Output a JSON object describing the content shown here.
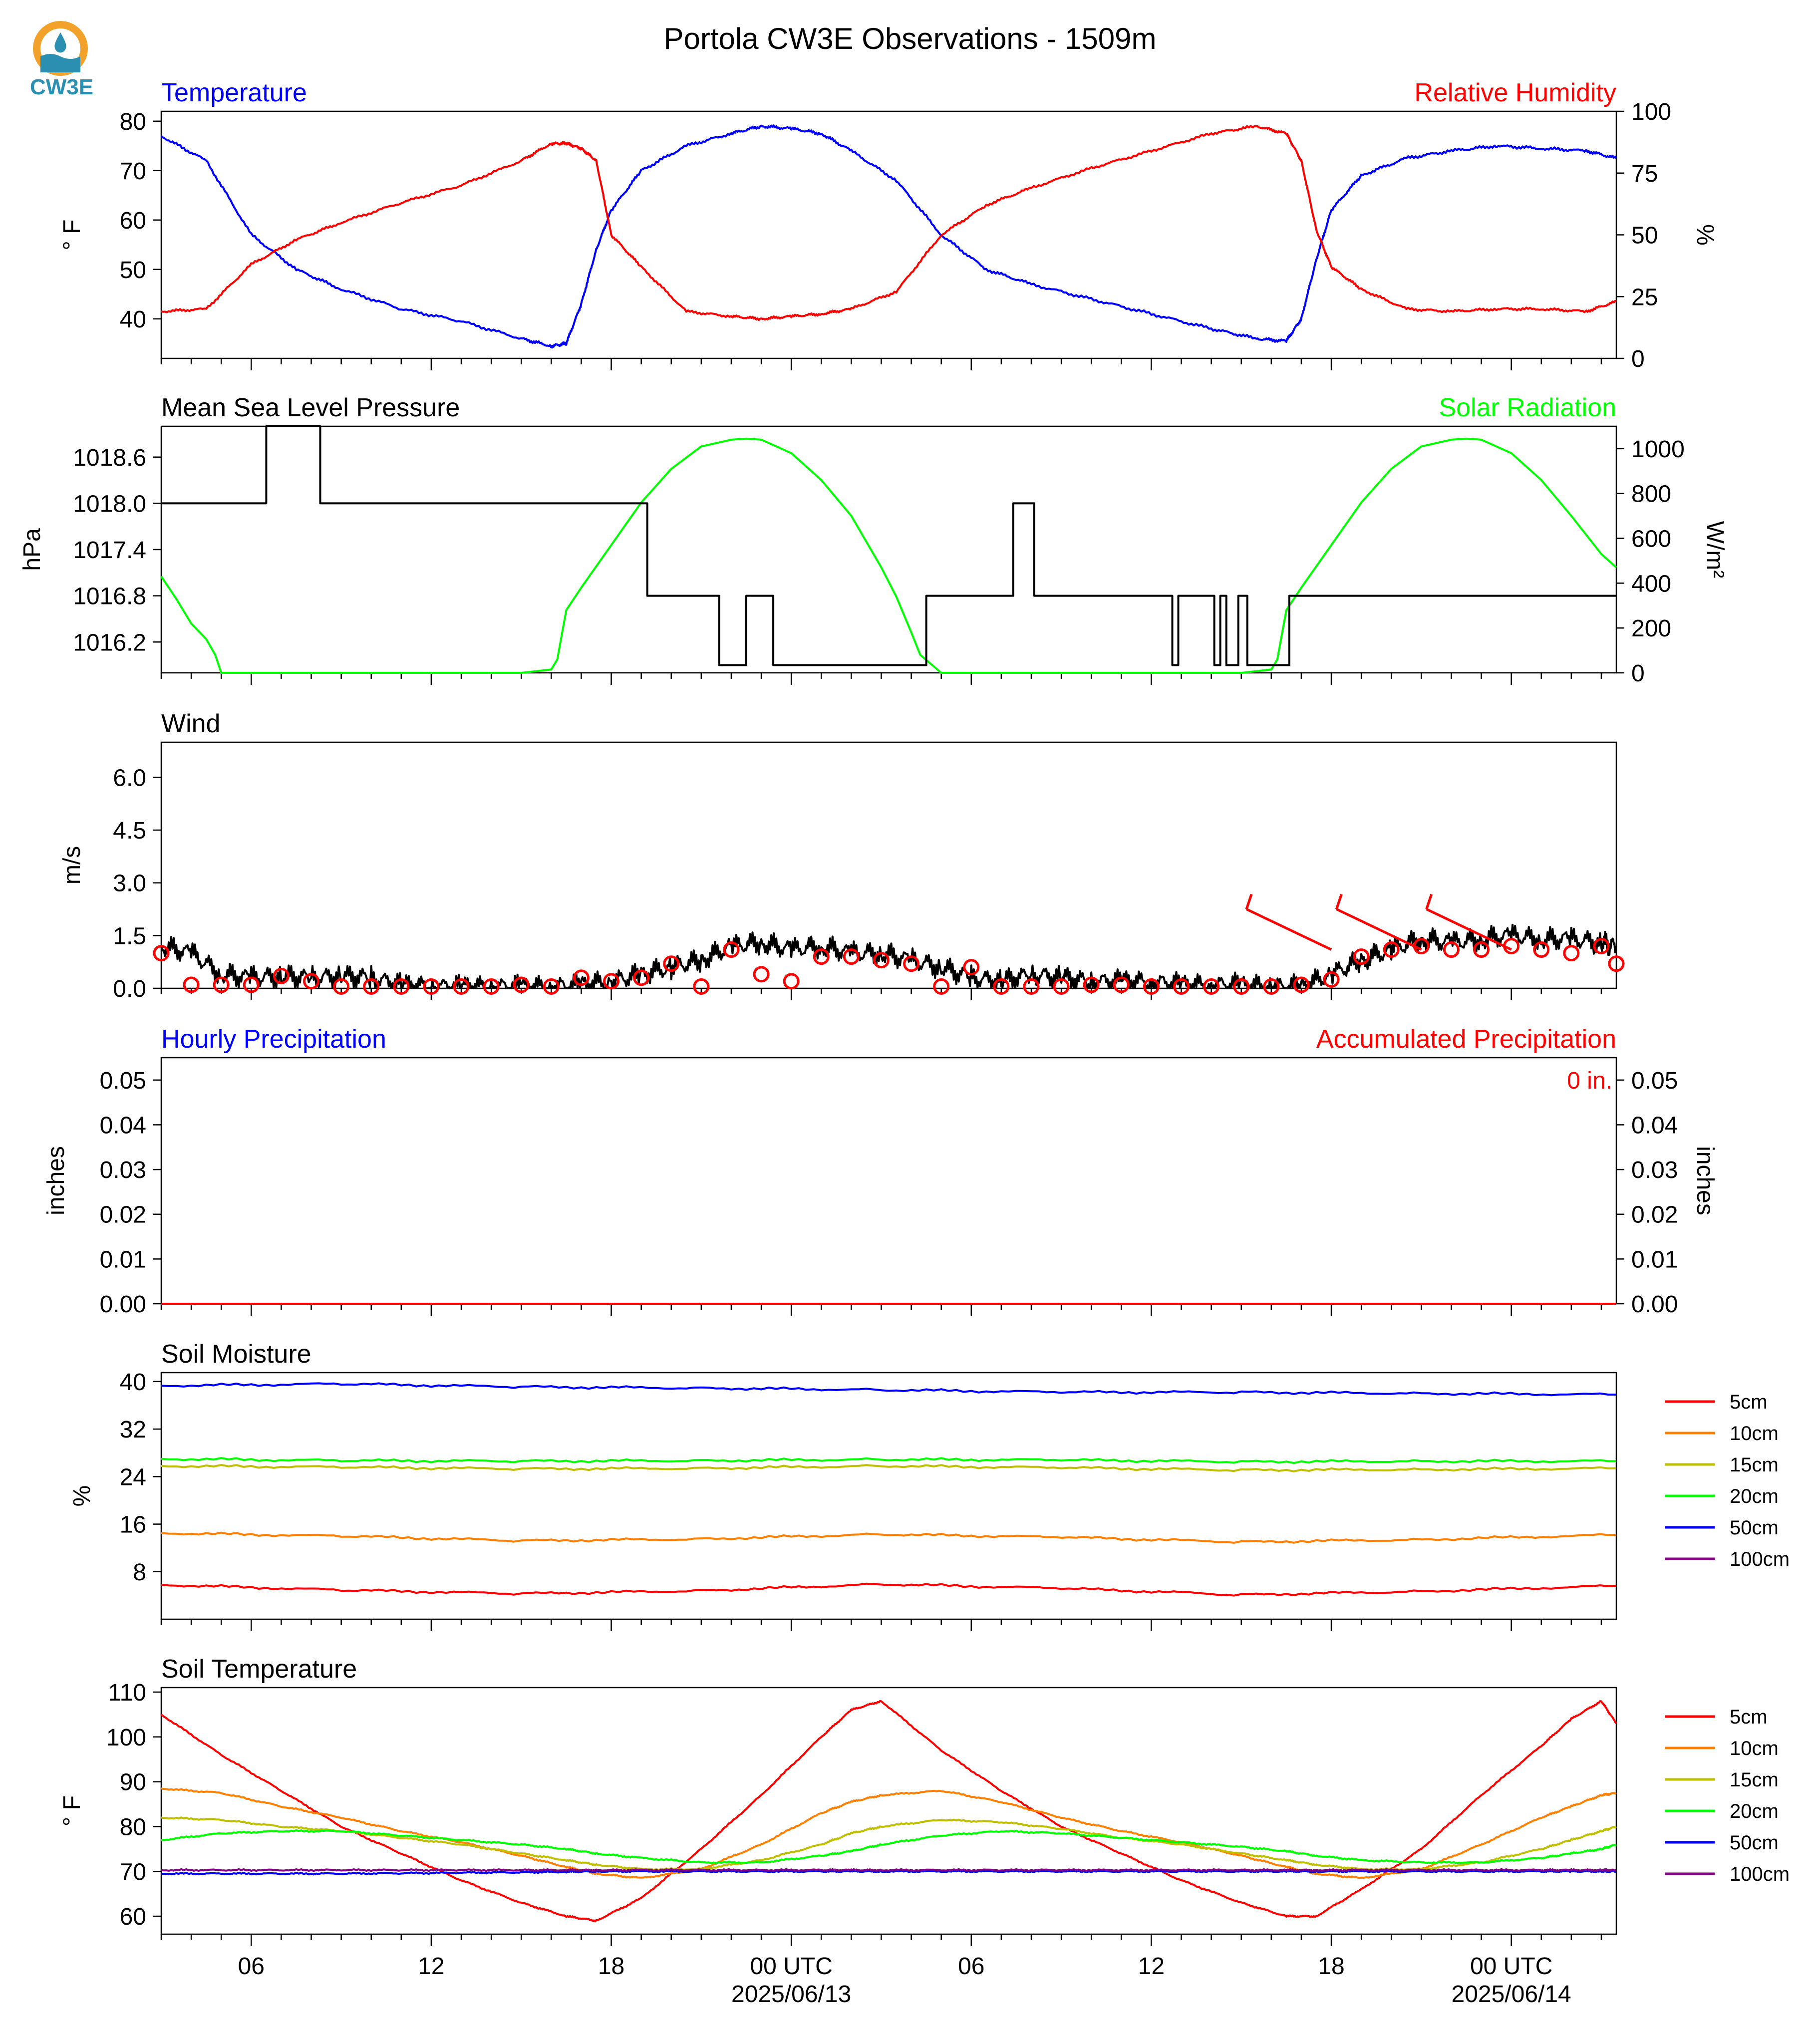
{
  "title": "Portola CW3E Observations - 1509m",
  "logo": {
    "text": "CW3E",
    "colors": {
      "sun": "#f2a22a",
      "water": "#2a8fb0"
    }
  },
  "x_axis": {
    "ticks": [
      "06",
      "12",
      "18",
      "00 UTC",
      "06",
      "12",
      "18",
      "00 UTC"
    ],
    "dates": [
      "2025/06/13",
      "2025/06/14"
    ]
  },
  "chart_data": [
    {
      "type": "line",
      "panel": "temperature_rh",
      "title_left": "Temperature",
      "title_right": "Relative Humidity",
      "ylabel_left": "° F",
      "ylabel_right": "%",
      "ylim_left": [
        32,
        82
      ],
      "yticks_left": [
        40,
        50,
        60,
        70,
        80
      ],
      "ylim_right": [
        0,
        100
      ],
      "yticks_right": [
        0,
        25,
        50,
        75,
        100
      ],
      "x_hours": [
        0,
        1.5,
        3,
        4.5,
        6,
        8,
        10,
        12,
        13,
        13.5,
        14,
        14.5,
        15,
        16,
        17.5,
        19,
        20,
        21,
        22,
        23,
        24.5,
        26,
        27.5,
        29,
        31,
        33,
        35,
        36.5,
        37.5,
        38,
        38.5,
        39,
        40,
        41.5,
        43,
        44.5,
        46,
        47.5,
        48.5
      ],
      "series": [
        {
          "name": "Temperature",
          "axis": "left",
          "color": "#0000ff",
          "values": [
            77,
            72,
            57,
            50,
            46,
            42,
            39.5,
            36,
            34.5,
            35,
            43,
            54,
            62,
            70,
            75,
            77.5,
            79,
            78.5,
            77.5,
            74,
            68,
            57,
            50,
            47,
            44,
            41,
            38,
            36,
            35.5,
            40,
            52,
            62,
            69,
            72.5,
            74,
            75,
            74.5,
            74,
            72.5
          ]
        },
        {
          "name": "Relative Humidity",
          "axis": "right",
          "color": "#ff0000",
          "values": [
            19,
            20,
            38,
            48,
            55,
            63,
            70,
            80,
            87,
            87,
            85,
            80,
            50,
            37,
            19,
            17,
            16,
            17,
            18,
            20,
            27,
            50,
            62,
            69,
            77,
            84,
            91,
            94,
            91,
            80,
            52,
            37,
            28,
            20,
            19,
            20,
            20,
            19,
            23
          ]
        }
      ]
    },
    {
      "type": "line",
      "panel": "pressure_solar",
      "title_left": "Mean Sea Level Pressure",
      "title_right": "Solar Radiation",
      "ylabel_left": "hPa",
      "ylabel_right": "W/m²",
      "ylim_left": [
        1015.8,
        1019.0
      ],
      "yticks_left": [
        1016.2,
        1016.8,
        1017.4,
        1018.0,
        1018.6
      ],
      "ylim_right": [
        0,
        1100
      ],
      "yticks_right": [
        0,
        200,
        400,
        600,
        800,
        1000
      ],
      "series": [
        {
          "name": "Mean Sea Level Pressure",
          "axis": "left",
          "color": "#000000",
          "x_hours": [
            0,
            3.5,
            3.5,
            5.3,
            5.3,
            16.2,
            16.2,
            18.6,
            18.6,
            19.5,
            19.5,
            20.4,
            20.4,
            25.5,
            25.5,
            28.4,
            28.4,
            29.1,
            29.1,
            33.7,
            33.7,
            33.9,
            33.9,
            35.1,
            35.1,
            35.3,
            35.3,
            35.5,
            35.5,
            35.9,
            35.9,
            36.2,
            36.2,
            37.6,
            37.6,
            48.5
          ],
          "values": [
            1018.0,
            1018.0,
            1019.0,
            1019.0,
            1018.0,
            1018.0,
            1016.8,
            1016.8,
            1015.9,
            1015.9,
            1016.8,
            1016.8,
            1015.9,
            1015.9,
            1016.8,
            1016.8,
            1018.0,
            1018.0,
            1016.8,
            1016.8,
            1015.9,
            1015.9,
            1016.8,
            1016.8,
            1015.9,
            1015.9,
            1016.8,
            1016.8,
            1015.9,
            1015.9,
            1016.8,
            1016.8,
            1015.9,
            1015.9,
            1016.8,
            1016.8
          ]
        },
        {
          "name": "Solar Radiation",
          "axis": "right",
          "color": "#00ff00",
          "x_hours": [
            0,
            0.5,
            1,
            1.5,
            1.8,
            2,
            12,
            13,
            13.2,
            13.5,
            14,
            15,
            16,
            17,
            18,
            19,
            19.5,
            20,
            21,
            22,
            23,
            24,
            24.5,
            25,
            25.3,
            26,
            36,
            37,
            37.2,
            37.5,
            38,
            39,
            40,
            41,
            42,
            43,
            43.5,
            44,
            45,
            46,
            47,
            48,
            48.5
          ],
          "values": [
            430,
            330,
            220,
            150,
            80,
            0,
            0,
            15,
            60,
            280,
            380,
            570,
            760,
            910,
            1010,
            1040,
            1045,
            1040,
            980,
            860,
            700,
            470,
            340,
            180,
            80,
            0,
            0,
            15,
            60,
            280,
            380,
            570,
            760,
            910,
            1010,
            1040,
            1045,
            1040,
            980,
            860,
            700,
            530,
            470
          ]
        }
      ]
    },
    {
      "type": "line",
      "panel": "wind",
      "title_left": "Wind",
      "ylabel_left": "m/s",
      "ylim_left": [
        0,
        7
      ],
      "yticks_left": [
        0.0,
        1.5,
        3.0,
        4.5,
        6.0
      ],
      "x_hours": [
        0,
        1,
        2,
        3,
        4,
        5,
        6,
        7,
        8,
        9,
        10,
        11,
        12,
        13,
        14,
        15,
        16,
        17,
        18,
        19,
        20,
        21,
        22,
        23,
        24,
        25,
        26,
        27,
        28,
        29,
        30,
        31,
        32,
        33,
        34,
        35,
        36,
        37,
        38,
        39,
        40,
        41,
        42,
        43,
        44,
        45,
        46,
        47,
        48,
        48.5
      ],
      "series": [
        {
          "name": "Wind Speed",
          "color": "#000000",
          "values": [
            1.2,
            1.0,
            0.4,
            0.3,
            0.35,
            0.3,
            0.35,
            0.3,
            0.1,
            0.05,
            0.05,
            0.05,
            0.05,
            0.05,
            0.1,
            0.2,
            0.4,
            0.6,
            0.8,
            1.2,
            1.3,
            1.1,
            1.2,
            1.0,
            1.0,
            0.8,
            0.6,
            0.3,
            0.2,
            0.4,
            0.3,
            0.2,
            0.2,
            0.2,
            0.1,
            0.1,
            0.1,
            0.05,
            0.05,
            0.4,
            0.8,
            1.1,
            1.4,
            1.3,
            1.4,
            1.5,
            1.4,
            1.4,
            1.3,
            1.2
          ]
        },
        {
          "name": "Wind Observations",
          "color": "#ff0000",
          "marker": "circle",
          "values": [
            1.0,
            0.1,
            0.1,
            0.1,
            0.35,
            0.2,
            0.05,
            0.05,
            0.05,
            0.05,
            0.05,
            0.05,
            0.1,
            0.05,
            0.3,
            0.2,
            0.3,
            0.7,
            0.05,
            1.1,
            0.4,
            0.2,
            0.9,
            0.9,
            0.8,
            0.7,
            0.05,
            0.6,
            0.05,
            0.05,
            0.05,
            0.1,
            0.1,
            0.05,
            0.05,
            0.05,
            0.05,
            0.05,
            0.1,
            0.25,
            0.9,
            1.1,
            1.2,
            1.1,
            1.1,
            1.2,
            1.1,
            1.0,
            1.2,
            0.7
          ]
        }
      ],
      "barbs_hours": [
        39,
        42,
        45
      ]
    },
    {
      "type": "line",
      "panel": "precipitation",
      "title_left": "Hourly Precipitation",
      "title_right": "Accumulated Precipitation",
      "ylabel_left": "inches",
      "ylabel_right": "inches",
      "ylim_left": [
        0,
        0.055
      ],
      "yticks_left": [
        "0.00",
        "0.01",
        "0.02",
        "0.03",
        "0.04",
        "0.05"
      ],
      "yticks_right": [
        "0.00",
        "0.01",
        "0.02",
        "0.03",
        "0.04",
        "0.05"
      ],
      "annotation": "0 in.",
      "series": [
        {
          "name": "Hourly Precipitation",
          "color": "#0000ff",
          "x_hours": [
            0,
            48.5
          ],
          "values": [
            0,
            0
          ]
        },
        {
          "name": "Accumulated Precipitation",
          "color": "#ff0000",
          "x_hours": [
            0,
            48.5
          ],
          "values": [
            0,
            0
          ]
        }
      ]
    },
    {
      "type": "line",
      "panel": "soil_moisture",
      "title_left": "Soil Moisture",
      "ylabel_left": "%",
      "ylim_left": [
        0,
        41.5
      ],
      "yticks_left": [
        8,
        16,
        24,
        32,
        40
      ],
      "x_hours": [
        0,
        6,
        12,
        18,
        24,
        30,
        36,
        42,
        48.5
      ],
      "series": [
        {
          "name": "5cm",
          "color": "#ff0000",
          "values": [
            5.8,
            4.9,
            4.3,
            4.8,
            5.9,
            5.2,
            4.1,
            4.7,
            5.6
          ]
        },
        {
          "name": "10cm",
          "color": "#ff8000",
          "values": [
            14.5,
            14.0,
            13.2,
            13.5,
            14.3,
            13.8,
            13.0,
            13.4,
            14.2
          ]
        },
        {
          "name": "15cm",
          "color": "#bfbf00",
          "values": [
            25.8,
            25.6,
            25.3,
            25.4,
            25.8,
            25.5,
            25.1,
            25.2,
            25.4
          ]
        },
        {
          "name": "20cm",
          "color": "#00ff00",
          "values": [
            27.0,
            26.7,
            26.6,
            26.7,
            26.9,
            26.8,
            26.5,
            26.6,
            26.6
          ]
        },
        {
          "name": "50cm",
          "color": "#0000ff",
          "values": [
            39.3,
            39.6,
            39.1,
            38.9,
            38.6,
            38.2,
            38.2,
            38.0,
            37.8
          ]
        },
        {
          "name": "100cm",
          "color": "#800080",
          "values": []
        }
      ],
      "legend": [
        "5cm",
        "10cm",
        "15cm",
        "20cm",
        "50cm",
        "100cm"
      ]
    },
    {
      "type": "line",
      "panel": "soil_temperature",
      "title_left": "Soil Temperature",
      "ylabel_left": "° F",
      "ylim_left": [
        56,
        111
      ],
      "yticks_left": [
        60,
        70,
        80,
        90,
        100,
        110
      ],
      "x_hours": [
        0,
        2,
        4,
        6,
        8,
        10,
        12,
        13.5,
        14.5,
        16,
        18,
        20,
        22,
        23,
        24,
        26,
        28,
        30,
        32,
        34,
        36,
        37.5,
        38.5,
        40,
        42,
        44,
        46,
        47,
        48,
        48.5
      ],
      "series": [
        {
          "name": "5cm",
          "color": "#ff0000",
          "values": [
            105,
            96,
            88,
            80,
            74,
            68,
            63,
            60,
            59,
            64,
            75,
            87,
            100,
            106,
            108,
            97,
            88,
            80,
            74,
            68,
            63,
            60,
            60,
            66,
            75,
            87,
            98,
            104,
            108,
            103
          ]
        },
        {
          "name": "10cm",
          "color": "#ff8000",
          "values": [
            88.5,
            87.5,
            84.5,
            82,
            79,
            76.5,
            73.5,
            71,
            69.5,
            68.5,
            70.5,
            76,
            83,
            85.5,
            87,
            88,
            85.5,
            82,
            79,
            76.5,
            73.5,
            71,
            69.5,
            68.5,
            70.5,
            76,
            82,
            84.5,
            87,
            87.5
          ]
        },
        {
          "name": "15cm",
          "color": "#bfbf00",
          "values": [
            82,
            81.5,
            80,
            79,
            77.5,
            76,
            74,
            72.5,
            71.5,
            70.5,
            70.5,
            72.5,
            76,
            78.5,
            80,
            81.5,
            81,
            79.5,
            77.5,
            76,
            74,
            72.5,
            71.5,
            70.5,
            70.5,
            72,
            75,
            77,
            79,
            80
          ]
        },
        {
          "name": "20cm",
          "color": "#00ff00",
          "values": [
            77,
            78.5,
            79,
            79,
            78,
            77,
            76,
            75,
            74,
            73,
            72,
            72,
            73.5,
            74.5,
            76,
            78,
            79,
            78.5,
            77.5,
            76.5,
            75.5,
            74.5,
            73.5,
            72.5,
            72,
            72,
            73,
            74,
            75,
            76
          ]
        },
        {
          "name": "50cm",
          "color": "#0000ff",
          "values": [
            69.5,
            69.5,
            69.5,
            69.5,
            69.6,
            69.7,
            69.8,
            69.9,
            70,
            70,
            70,
            70,
            70,
            70,
            70,
            70,
            70,
            70,
            70,
            70,
            70,
            70,
            70,
            70,
            70,
            70,
            70,
            70,
            70,
            70
          ]
        },
        {
          "name": "100cm",
          "color": "#800080",
          "values": [
            70.3,
            70.3,
            70.3,
            70.3,
            70.3,
            70.3,
            70.3,
            70.3,
            70.3,
            70.3,
            70.3,
            70.3,
            70.3,
            70.3,
            70.3,
            70.3,
            70.3,
            70.3,
            70.3,
            70.3,
            70.3,
            70.3,
            70.3,
            70.3,
            70.3,
            70.3,
            70.3,
            70.3,
            70.3,
            70.3
          ]
        }
      ],
      "legend": [
        "5cm",
        "10cm",
        "15cm",
        "20cm",
        "50cm",
        "100cm"
      ]
    }
  ]
}
